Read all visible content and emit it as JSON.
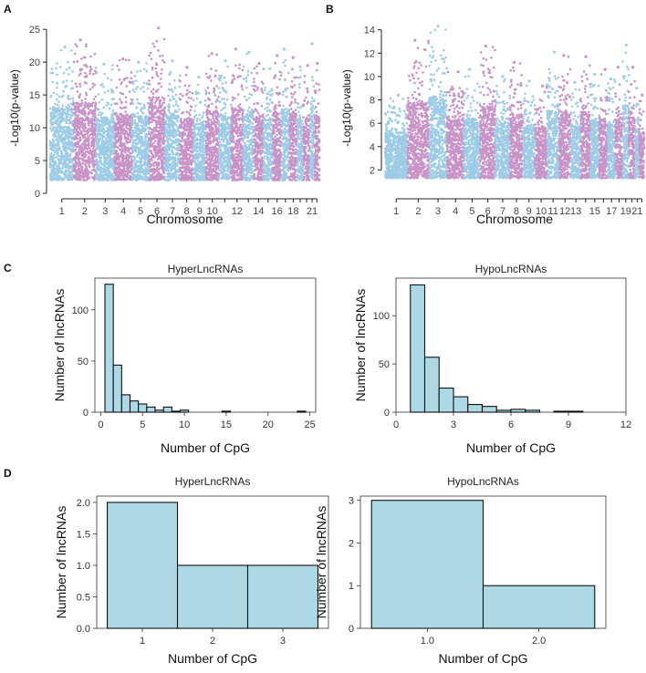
{
  "colors": {
    "blue": "#9ccce6",
    "pink": "#c993c8",
    "bar": "#add8e6",
    "edge": "#111111"
  },
  "chart_data": [
    {
      "id": "A",
      "panel_label": "A",
      "type": "scatter",
      "subtype": "manhattan",
      "xlabel": "Chromosome",
      "ylabel": "-Log10(p-value)",
      "ylim": [
        0,
        26
      ],
      "yticks": [
        0,
        5,
        10,
        15,
        20,
        25
      ],
      "xtick_labels": [
        "1",
        "2",
        "3",
        "4",
        "5",
        "6",
        "7",
        "8",
        "9",
        "10",
        "12",
        "14",
        "16",
        "18",
        "21"
      ],
      "chromosomes": [
        "1",
        "2",
        "3",
        "4",
        "5",
        "6",
        "7",
        "8",
        "9",
        "10",
        "11",
        "12",
        "13",
        "14",
        "15",
        "16",
        "17",
        "18",
        "19",
        "20",
        "21",
        "22"
      ],
      "chrom_widths": [
        8,
        7.8,
        6.4,
        6.1,
        5.8,
        5.5,
        5.2,
        4.6,
        4.4,
        4.3,
        4.3,
        4.2,
        3.6,
        3.4,
        3.2,
        3,
        2.8,
        2.6,
        2.2,
        2.2,
        1.6,
        1.7
      ],
      "chrom_peaks": [
        22.3,
        23.4,
        19.7,
        20.5,
        20,
        25.2,
        20.2,
        19.2,
        17.7,
        21.3,
        20.2,
        22,
        21.5,
        19.8,
        19,
        21,
        22,
        20.7,
        19.3,
        19.5,
        22.8,
        19.8
      ],
      "baseline": 2
    },
    {
      "id": "B",
      "panel_label": "B",
      "type": "scatter",
      "subtype": "manhattan",
      "xlabel": "Chromosome",
      "ylabel": "-Log10(p-value)",
      "ylim": [
        0,
        14.6
      ],
      "yticks": [
        2,
        4,
        6,
        8,
        10,
        12,
        14
      ],
      "xtick_labels": [
        "1",
        "2",
        "3",
        "4",
        "5",
        "6",
        "7",
        "8",
        "9",
        "10",
        "11",
        "12",
        "13",
        "15",
        "17",
        "19",
        "21"
      ],
      "chromosomes": [
        "1",
        "2",
        "3",
        "4",
        "5",
        "6",
        "7",
        "8",
        "9",
        "10",
        "11",
        "12",
        "13",
        "14",
        "15",
        "16",
        "17",
        "18",
        "19",
        "20",
        "21",
        "22"
      ],
      "chrom_widths": [
        8,
        7.8,
        6.4,
        6.1,
        5.8,
        5.5,
        5.2,
        4.6,
        4.4,
        4.3,
        4.3,
        4.2,
        3.6,
        3.4,
        3.2,
        3,
        2.8,
        2.6,
        2.2,
        2.2,
        1.6,
        1.7
      ],
      "chrom_peaks": [
        8.4,
        13.1,
        14.3,
        10.4,
        10.6,
        12.6,
        10,
        11.2,
        9.6,
        9.2,
        12.1,
        11.8,
        9.5,
        11.7,
        10.2,
        10.6,
        9.8,
        10.8,
        12.7,
        10.8,
        9,
        8.4
      ],
      "baseline": 1.3
    },
    {
      "id": "C1",
      "panel_label": "C",
      "type": "bar",
      "subtype": "histogram",
      "title": "HyperLncRNAs",
      "xlabel": "Number of CpG",
      "ylabel": "Number of lncRNAs",
      "bin_width": 1,
      "bin_start": 0.5,
      "counts": [
        125,
        46,
        17,
        11,
        8,
        5,
        2,
        5,
        1,
        2,
        0,
        0,
        0,
        0,
        1,
        0,
        0,
        0,
        0,
        0,
        0,
        0,
        0,
        1
      ],
      "xlim": [
        -0.7,
        25.7
      ],
      "ylim": [
        0,
        131
      ],
      "xticks": [
        0,
        5,
        10,
        15,
        20,
        25
      ],
      "yticks": [
        0,
        50,
        100
      ]
    },
    {
      "id": "C2",
      "panel_label": "",
      "type": "bar",
      "subtype": "histogram",
      "title": "HypoLncRNAs",
      "xlabel": "Number of CpG",
      "ylabel": "Number of lncRNAs",
      "bin_width": 0.75,
      "bin_start": 0.75,
      "counts": [
        132,
        57,
        25,
        16,
        8,
        6,
        2,
        3,
        2,
        0,
        1,
        1
      ],
      "xlim": [
        0,
        12
      ],
      "ylim": [
        0,
        139
      ],
      "xticks": [
        0,
        3,
        6,
        9,
        12
      ],
      "yticks": [
        0,
        50,
        100
      ]
    },
    {
      "id": "D1",
      "panel_label": "D",
      "type": "bar",
      "subtype": "histogram",
      "title": "HyperLncRNAs",
      "xlabel": "Number of CpG",
      "ylabel": "Number of lncRNAs",
      "bin_width": 1,
      "bin_start": 0.5,
      "counts": [
        2,
        1,
        1
      ],
      "xlim": [
        0.35,
        3.65
      ],
      "ylim": [
        0,
        2.1
      ],
      "xticks": [
        1,
        2,
        3
      ],
      "xtick_labels": [
        "1",
        "2",
        "3"
      ],
      "yticks": [
        0,
        0.5,
        1,
        1.5,
        2
      ],
      "ytick_labels": [
        "0.0",
        "0.5",
        "1.0",
        "1.5",
        "2.0"
      ]
    },
    {
      "id": "D2",
      "panel_label": "",
      "type": "bar",
      "subtype": "histogram",
      "title": "HypoLncRNAs",
      "xlabel": "Number of CpG",
      "ylabel": "Number of lncRNAs",
      "bin_width": 1,
      "bin_start": 0.5,
      "counts": [
        3,
        1
      ],
      "xlim": [
        0.4,
        2.6
      ],
      "ylim": [
        0,
        3.1
      ],
      "xticks": [
        1,
        2
      ],
      "xtick_labels": [
        "1.0",
        "2.0"
      ],
      "yticks": [
        0,
        1,
        2,
        3
      ],
      "ytick_labels": [
        "0",
        "1",
        "2",
        "3"
      ]
    }
  ]
}
